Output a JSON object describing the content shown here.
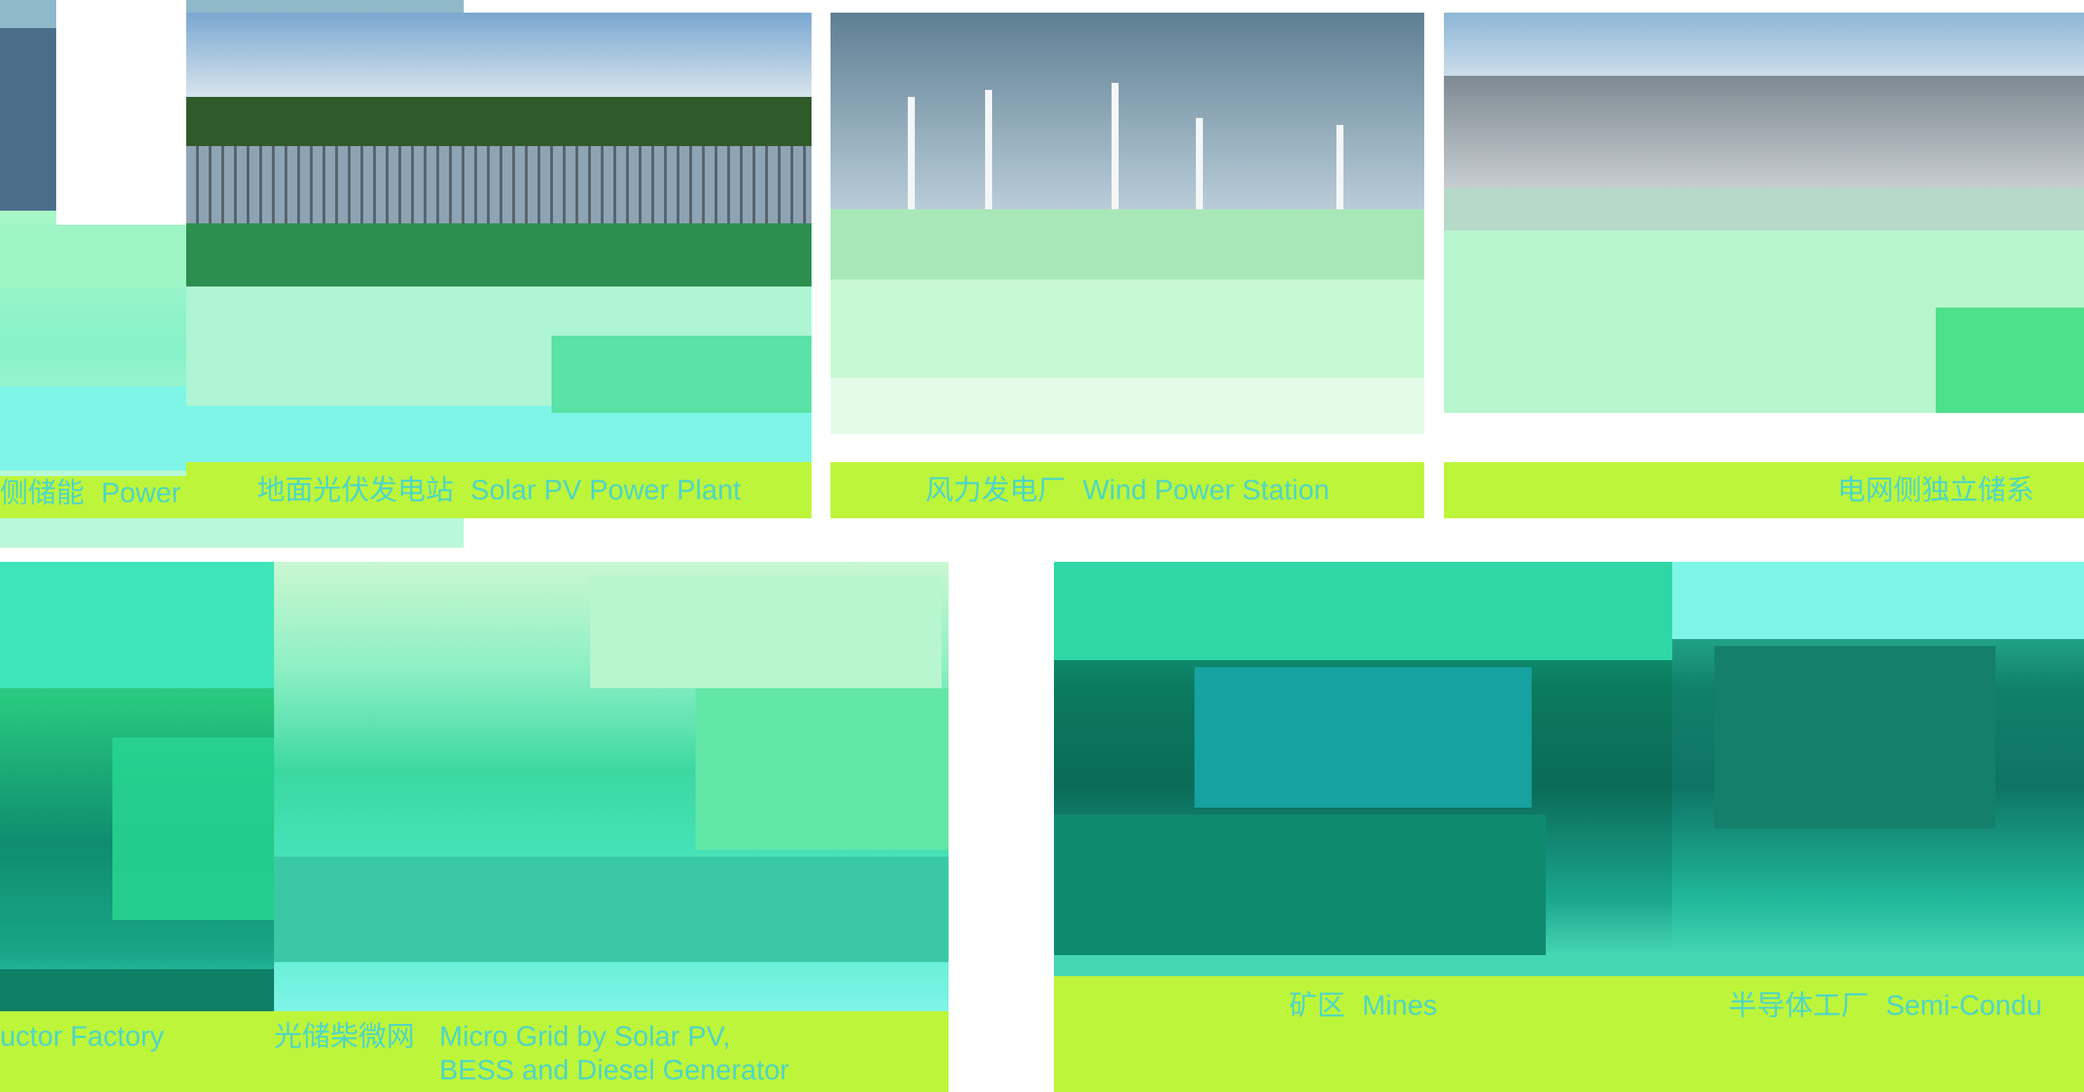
{
  "tiles": [
    {
      "id": "grid-side-bess",
      "caption_zh": "侧储能",
      "caption_en": "Power Grid Side BESS"
    },
    {
      "id": "solar-pv",
      "caption_zh": "地面光伏发电站",
      "caption_en": "Solar PV Power Plant"
    },
    {
      "id": "wind-power",
      "caption_zh": "风力发电厂",
      "caption_en": "Wind Power Station"
    },
    {
      "id": "grid-independent",
      "caption_zh": "电网侧独立储系",
      "caption_en": ""
    },
    {
      "id": "semiconductor-left",
      "caption_zh": "",
      "caption_en": "uctor Factory"
    },
    {
      "id": "microgrid",
      "caption_zh": "光储柴微网",
      "caption_en": "Micro Grid by Solar PV, BESS and Diesel Generator"
    },
    {
      "id": "mines",
      "caption_zh": "矿区",
      "caption_en": "Mines"
    },
    {
      "id": "semiconductor",
      "caption_zh": "半导体工厂",
      "caption_en": "Semi-Condu"
    }
  ],
  "colors": {
    "caption_bg": "#bdf53a",
    "caption_text": "#4fd6c4",
    "glitch_cyan": "#7ff5e8",
    "glitch_green": "#4ee08a",
    "glitch_teal": "#15907a"
  }
}
